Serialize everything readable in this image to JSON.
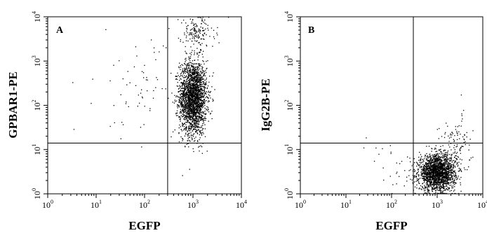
{
  "chart_data": [
    {
      "type": "scatter",
      "panel_label": "A",
      "xlabel": "EGFP",
      "ylabel": "GPBAR1-PE",
      "xscale": "log",
      "yscale": "log",
      "xlim": [
        1,
        10000
      ],
      "ylim": [
        1,
        10000
      ],
      "x_tick_labels": [
        {
          "base": "10",
          "exp": "0"
        },
        {
          "base": "10",
          "exp": "1"
        },
        {
          "base": "10",
          "exp": "2"
        },
        {
          "base": "10",
          "exp": "3"
        },
        {
          "base": "10",
          "exp": "4"
        }
      ],
      "y_tick_labels": [
        {
          "base": "10",
          "exp": "0"
        },
        {
          "base": "10",
          "exp": "1"
        },
        {
          "base": "10",
          "exp": "2"
        },
        {
          "base": "10",
          "exp": "3"
        },
        {
          "base": "10",
          "exp": "4"
        }
      ],
      "quadrant_gates": {
        "x": 300,
        "y": 14
      },
      "populations": [
        {
          "count": 2300,
          "center": [
            1000,
            150
          ],
          "spread_log10": [
            0.14,
            0.42
          ]
        },
        {
          "count": 150,
          "center": [
            1200,
            4500
          ],
          "spread_log10": [
            0.18,
            0.18
          ]
        },
        {
          "count": 70,
          "center": [
            80,
            250
          ],
          "spread_log10": [
            0.45,
            0.55
          ]
        }
      ],
      "grid": false
    },
    {
      "type": "scatter",
      "panel_label": "B",
      "xlabel": "EGFP",
      "ylabel": "IgG2B-PE",
      "xscale": "log",
      "yscale": "log",
      "xlim": [
        1,
        10000
      ],
      "ylim": [
        1,
        10000
      ],
      "x_tick_labels": [
        {
          "base": "10",
          "exp": "0"
        },
        {
          "base": "10",
          "exp": "1"
        },
        {
          "base": "10",
          "exp": "2"
        },
        {
          "base": "10",
          "exp": "3"
        },
        {
          "base": "10",
          "exp": "4"
        }
      ],
      "y_tick_labels": [
        {
          "base": "10",
          "exp": "0"
        },
        {
          "base": "10",
          "exp": "1"
        },
        {
          "base": "10",
          "exp": "2"
        },
        {
          "base": "10",
          "exp": "3"
        },
        {
          "base": "10",
          "exp": "4"
        }
      ],
      "quadrant_gates": {
        "x": 300,
        "y": 14
      },
      "populations": [
        {
          "count": 2000,
          "center": [
            1000,
            3
          ],
          "spread_log10": [
            0.2,
            0.2
          ]
        },
        {
          "count": 120,
          "center": [
            2500,
            12
          ],
          "spread_log10": [
            0.18,
            0.35
          ]
        },
        {
          "count": 30,
          "center": [
            120,
            4
          ],
          "spread_log10": [
            0.4,
            0.35
          ]
        }
      ],
      "grid": false
    }
  ]
}
